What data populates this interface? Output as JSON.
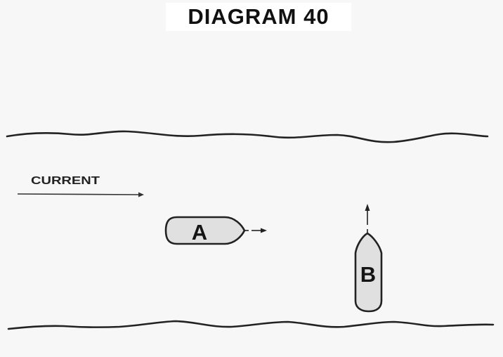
{
  "title": "DIAGRAM 40",
  "current_label": "CURRENT",
  "vessels": [
    {
      "label": "A",
      "heading": "downstream"
    },
    {
      "label": "B",
      "heading": "north"
    }
  ],
  "colors": {
    "background": "#f7f7f7",
    "title_box": "#ffffff",
    "ink": "#222222",
    "vessel_fill": "#e0e0e0"
  }
}
